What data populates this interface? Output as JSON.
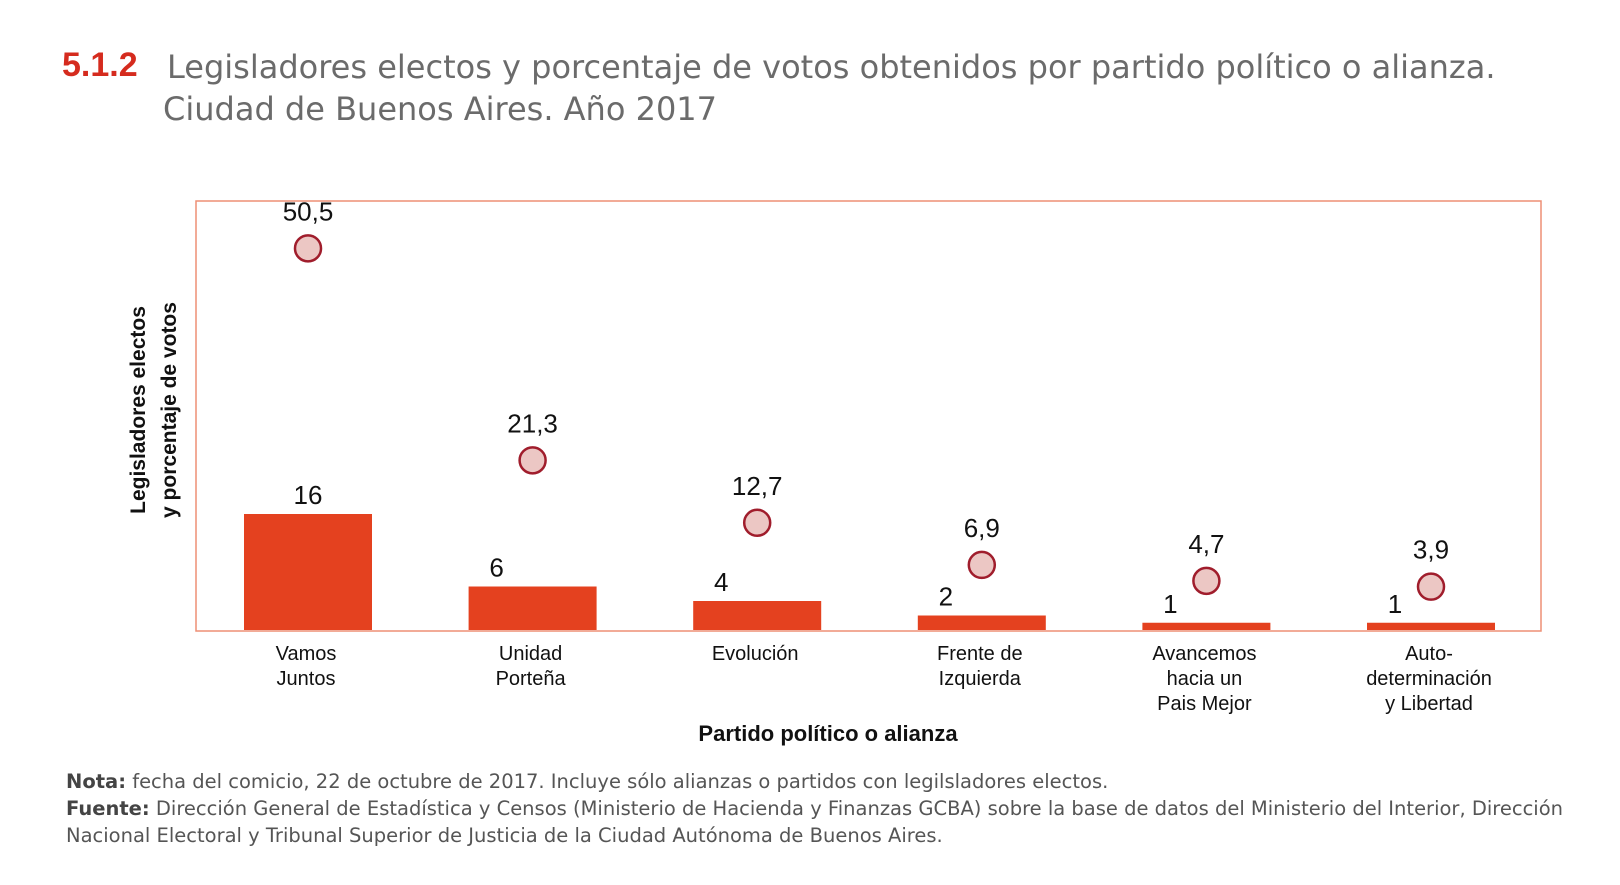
{
  "title": {
    "number": "5.1.2",
    "line1": "Legisladores electos y porcentaje de votos obtenidos por partido político o alianza.",
    "line2": "Ciudad de Buenos Aires. Año 2017"
  },
  "chart_data": {
    "type": "bar",
    "categories": [
      [
        "Vamos",
        "Juntos"
      ],
      [
        "Unidad",
        "Porteña"
      ],
      [
        "Evolución"
      ],
      [
        "Frente de",
        "Izquierda"
      ],
      [
        "Avancemos",
        "hacia un",
        "Pais Mejor"
      ],
      [
        "Auto-",
        "determinación",
        "y Libertad"
      ]
    ],
    "series": [
      {
        "type": "bar",
        "values": [
          16,
          6,
          4,
          2,
          1,
          1
        ],
        "labels": [
          "16",
          "6",
          "4",
          "2",
          "1",
          "1"
        ]
      },
      {
        "type": "scatter",
        "values": [
          50.5,
          21.3,
          12.7,
          6.9,
          4.7,
          3.9
        ],
        "labels": [
          "50,5",
          "21,3",
          "12,7",
          "6,9",
          "4,7",
          "3,9"
        ]
      }
    ],
    "xlabel": "Partido político o alianza",
    "ylabel_line1": "Legisladores  electos",
    "ylabel_line2": "y porcentaje de votos",
    "colors": {
      "bar": "#e4411f",
      "marker_fill": "#ecc7c4",
      "marker_stroke": "#a01d2c",
      "frame": "#ee8f75"
    },
    "grid": false
  },
  "notes": {
    "note_label": "Nota:",
    "note_text": " fecha del comicio, 22 de octubre de 2017. Incluye sólo alianzas o partidos con legilsladores electos.",
    "source_label": "Fuente:",
    "source_text": " Dirección General de Estadística y Censos (Ministerio de Hacienda y Finanzas GCBA) sobre la base de datos del Ministerio del Interior, Dirección Nacional Electoral y Tribunal Superior de Justicia de la Ciudad Autónoma de Buenos Aires."
  }
}
